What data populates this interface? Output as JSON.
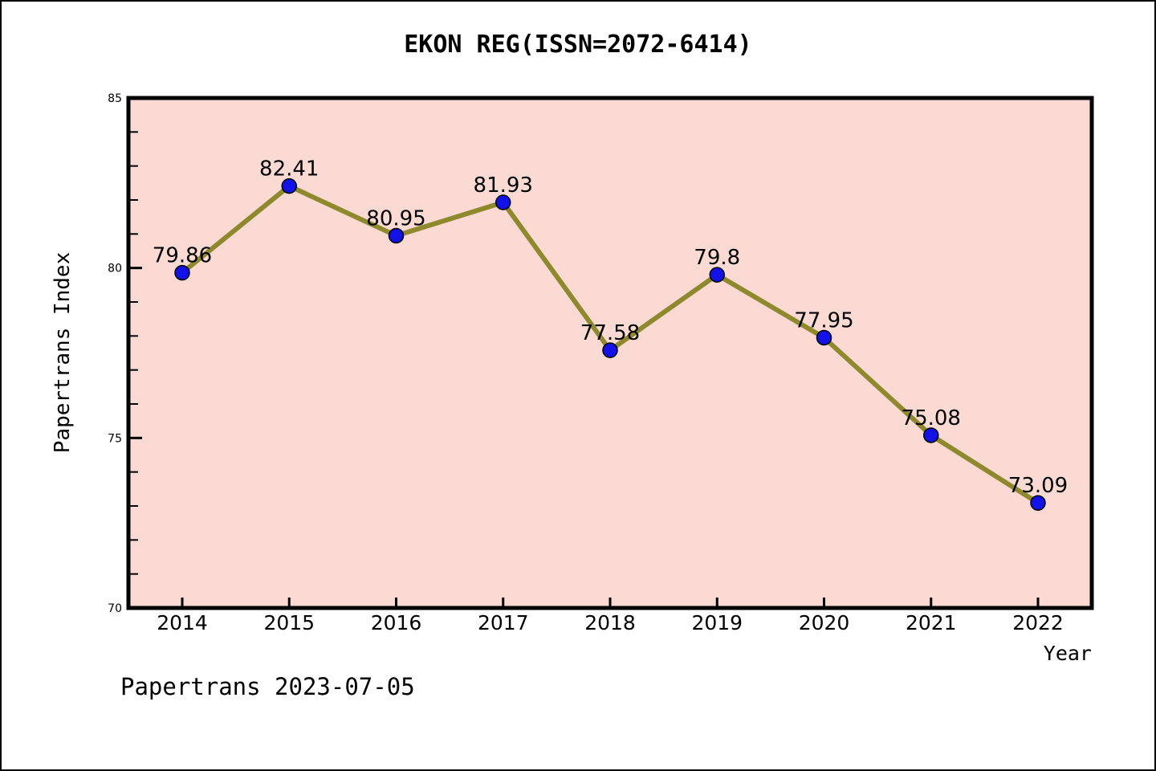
{
  "page": {
    "footer": "Papertrans 2023-07-05"
  },
  "chart_data": {
    "type": "line",
    "title": "EKON REG(ISSN=2072-6414)",
    "xlabel": "Year",
    "ylabel": "Papertrans Index",
    "categories": [
      "2014",
      "2015",
      "2016",
      "2017",
      "2018",
      "2019",
      "2020",
      "2021",
      "2022"
    ],
    "values": [
      79.86,
      82.41,
      80.95,
      81.93,
      77.58,
      79.8,
      77.95,
      75.08,
      73.09
    ],
    "point_labels": [
      "79.86",
      "82.41",
      "80.95",
      "81.93",
      "77.58",
      "79.8",
      "77.95",
      "75.08",
      "73.09"
    ],
    "ylim": [
      70,
      85
    ],
    "yticks": [
      70,
      75,
      80,
      85
    ],
    "ytick_labels": [
      "70",
      "75",
      "80",
      "85"
    ],
    "minor_tick_unit": 1,
    "grid": false,
    "legend": null,
    "colors": {
      "line": "#8e892c",
      "marker_fill": "#1212e8",
      "marker_edge": "#000000",
      "plot_background": "#fcdad4",
      "figure_background": "#ffffff",
      "axis": "#000000",
      "text": "#000000"
    }
  }
}
